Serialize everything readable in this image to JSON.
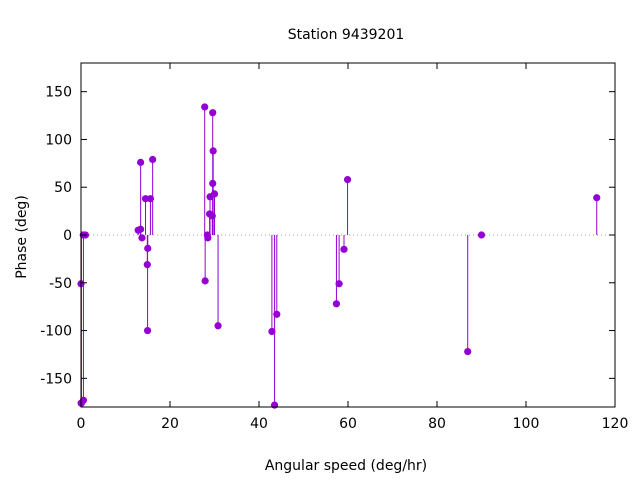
{
  "chart_data": {
    "type": "stem",
    "title": "Station 9439201",
    "xlabel": "Angular speed (deg/hr)",
    "ylabel": "Phase (deg)",
    "xlim": [
      0,
      120
    ],
    "ylim": [
      -180,
      180
    ],
    "xticks": [
      0,
      20,
      40,
      60,
      80,
      100,
      120
    ],
    "yticks": [
      -150,
      -100,
      -50,
      0,
      50,
      100,
      150
    ],
    "grid": false,
    "zero_line": "dotted",
    "color": "#9400d3",
    "points": [
      {
        "x": 0.0,
        "y": -51
      },
      {
        "x": 0.04,
        "y": -176
      },
      {
        "x": 0.08,
        "y": -176
      },
      {
        "x": 0.5,
        "y": 0
      },
      {
        "x": 0.55,
        "y": -173
      },
      {
        "x": 1.0,
        "y": 0
      },
      {
        "x": 12.85,
        "y": 5
      },
      {
        "x": 13.4,
        "y": 76
      },
      {
        "x": 13.4,
        "y": 6
      },
      {
        "x": 13.7,
        "y": -3
      },
      {
        "x": 14.5,
        "y": 38
      },
      {
        "x": 14.9,
        "y": -31
      },
      {
        "x": 14.96,
        "y": -100
      },
      {
        "x": 15.0,
        "y": -14
      },
      {
        "x": 15.6,
        "y": 38
      },
      {
        "x": 16.1,
        "y": 79
      },
      {
        "x": 27.8,
        "y": 134
      },
      {
        "x": 27.9,
        "y": -48
      },
      {
        "x": 28.4,
        "y": 0
      },
      {
        "x": 28.5,
        "y": -3
      },
      {
        "x": 28.9,
        "y": 22
      },
      {
        "x": 29.0,
        "y": 40
      },
      {
        "x": 29.5,
        "y": 20
      },
      {
        "x": 29.6,
        "y": 54
      },
      {
        "x": 29.6,
        "y": 128
      },
      {
        "x": 29.7,
        "y": 88
      },
      {
        "x": 30.0,
        "y": 43
      },
      {
        "x": 30.8,
        "y": -95
      },
      {
        "x": 42.9,
        "y": -101
      },
      {
        "x": 43.5,
        "y": -178
      },
      {
        "x": 44.0,
        "y": -83
      },
      {
        "x": 57.4,
        "y": -72
      },
      {
        "x": 58.0,
        "y": -51
      },
      {
        "x": 59.1,
        "y": -15
      },
      {
        "x": 59.9,
        "y": 58
      },
      {
        "x": 86.9,
        "y": -122
      },
      {
        "x": 90.0,
        "y": 0
      },
      {
        "x": 115.9,
        "y": 39
      }
    ]
  }
}
